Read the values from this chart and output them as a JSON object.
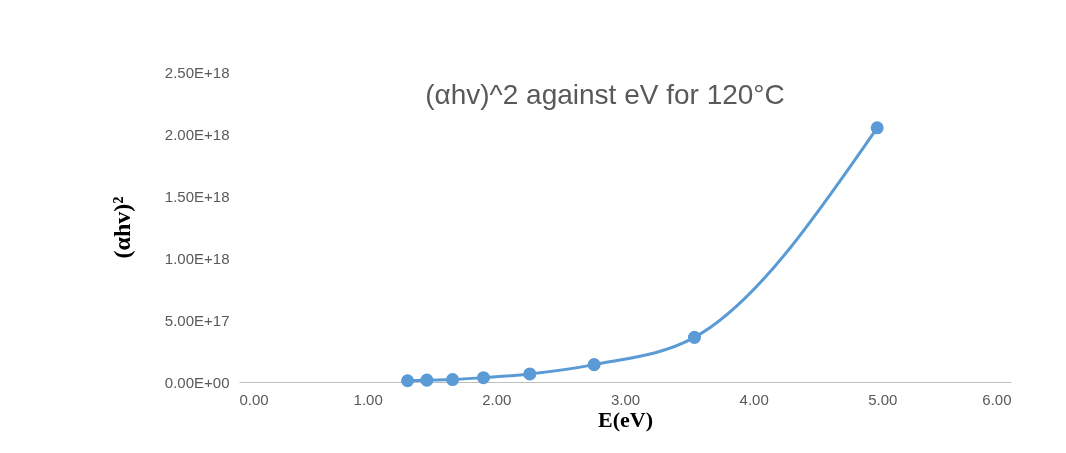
{
  "chart_data": {
    "type": "line",
    "title": "(αhv)^2 against eV for 120°C",
    "xlabel": "E(eV)",
    "ylabel": "(αhv)²",
    "x": [
      1.31,
      1.46,
      1.66,
      1.9,
      2.26,
      2.76,
      3.54,
      4.96
    ],
    "series": [
      {
        "color": "#5b9bd5",
        "values": [
          1e+16,
          1.5e+16,
          2e+16,
          3.5e+16,
          6.5e+16,
          1.4e+17,
          3.6e+17,
          2.05e+18
        ]
      }
    ],
    "marker": "circle",
    "grid": false,
    "xlim": [
      0,
      6
    ],
    "xticks": [
      {
        "value": 0,
        "label": "0.00"
      },
      {
        "value": 1,
        "label": "1.00"
      },
      {
        "value": 2,
        "label": "2.00"
      },
      {
        "value": 3,
        "label": "3.00"
      },
      {
        "value": 4,
        "label": "4.00"
      },
      {
        "value": 5,
        "label": "5.00"
      },
      {
        "value": 6,
        "label": "6.00"
      }
    ],
    "ylim": [
      0,
      2.5e+18
    ],
    "yticks": [
      {
        "value": 0,
        "label": "0.00E+00"
      },
      {
        "value": 5e+17,
        "label": "5.00E+17"
      },
      {
        "value": 1e+18,
        "label": "1.00E+18"
      },
      {
        "value": 1.5e+18,
        "label": "1.50E+18"
      },
      {
        "value": 2e+18,
        "label": "2.00E+18"
      },
      {
        "value": 2.5e+18,
        "label": "2.50E+18"
      }
    ]
  }
}
